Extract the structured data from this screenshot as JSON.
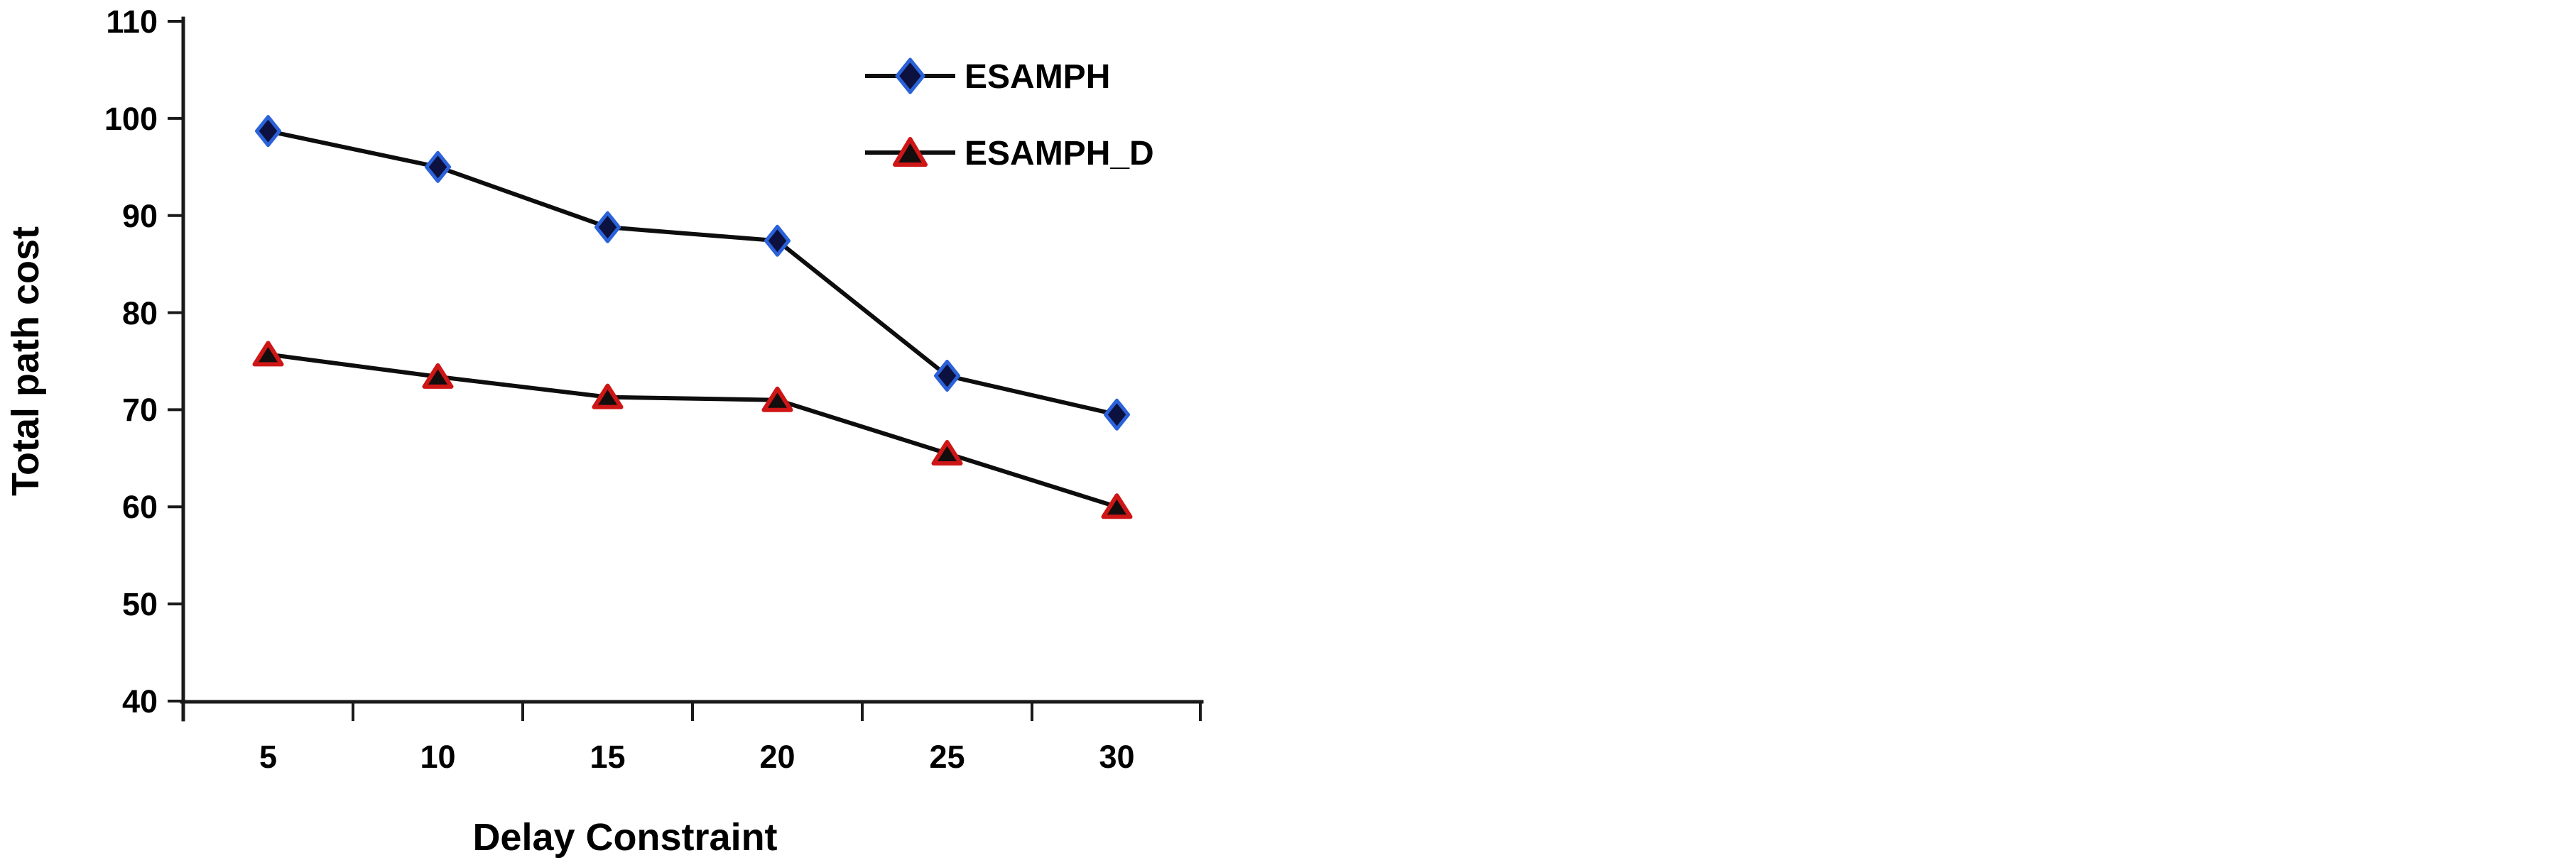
{
  "figure": {
    "background": "#ffffff",
    "text_color": "#000000",
    "axis_color": "#1a1a1a"
  },
  "chart_data": {
    "type": "line",
    "title": "",
    "xlabel": "Delay Constraint",
    "ylabel": "Total path cost",
    "categories": [
      5,
      10,
      15,
      20,
      25,
      30
    ],
    "y_tick_labels": [
      "110",
      "100",
      "90",
      "80",
      "70",
      "60",
      "50",
      "40"
    ],
    "ylim": [
      40,
      110
    ],
    "y_tick_step": 10,
    "grid": false,
    "legend_position": "top-right-inside",
    "series": [
      {
        "name": "ESAMPH",
        "marker": "diamond",
        "marker_fill": "#0c1140",
        "marker_stroke": "#2b62d9",
        "line_color": "#0d0d0d",
        "values": [
          98.7,
          95.0,
          88.8,
          87.4,
          73.5,
          69.5
        ]
      },
      {
        "name": "ESAMPH_D",
        "marker": "triangle",
        "marker_fill": "#140d0d",
        "marker_stroke": "#cf1616",
        "line_color": "#0d0d0d",
        "values": [
          75.7,
          73.4,
          71.3,
          71.0,
          65.5,
          60.0
        ]
      }
    ]
  }
}
